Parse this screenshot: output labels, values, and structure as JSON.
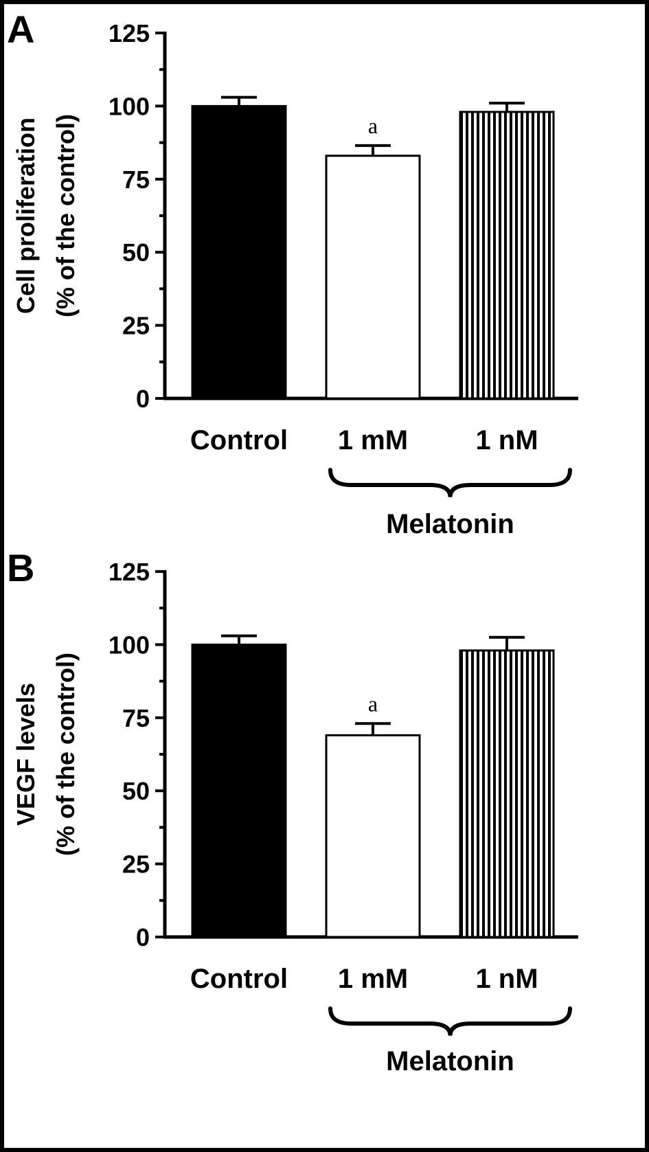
{
  "chart_data": [
    {
      "type": "bar",
      "panel": "A",
      "ylabel_lines": [
        "Cell proliferation",
        "(% of  the control)"
      ],
      "categories": [
        "Control",
        "1 mM",
        "1 nM"
      ],
      "values": [
        100,
        83,
        98
      ],
      "errors": [
        3,
        3.5,
        3
      ],
      "annotations": [
        "",
        "a",
        ""
      ],
      "ylim": [
        0,
        125
      ],
      "yticks": [
        0,
        25,
        50,
        75,
        100,
        125
      ],
      "group_label": "Melatonin",
      "group_categories": [
        "1 mM",
        "1 nM"
      ],
      "bar_fills": [
        "solid-black",
        "white",
        "vertical-stripes"
      ]
    },
    {
      "type": "bar",
      "panel": "B",
      "ylabel_lines": [
        "VEGF levels",
        "(% of  the control)"
      ],
      "categories": [
        "Control",
        "1 mM",
        "1 nM"
      ],
      "values": [
        100,
        69,
        98
      ],
      "errors": [
        3,
        4,
        4.5
      ],
      "annotations": [
        "",
        "a",
        ""
      ],
      "ylim": [
        0,
        125
      ],
      "yticks": [
        0,
        25,
        50,
        75,
        100,
        125
      ],
      "group_label": "Melatonin",
      "group_categories": [
        "1 mM",
        "1 nM"
      ],
      "bar_fills": [
        "solid-black",
        "white",
        "vertical-stripes"
      ]
    }
  ],
  "colors": {
    "bars": "#000000",
    "background": "#ffffff",
    "border": "#000000"
  }
}
